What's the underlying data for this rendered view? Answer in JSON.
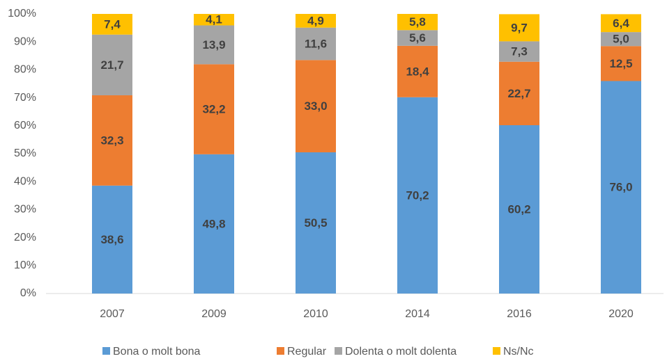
{
  "chart_data": {
    "type": "stacked_bar",
    "categories": [
      "2007",
      "2009",
      "2010",
      "2014",
      "2016",
      "2020"
    ],
    "series": [
      {
        "name": "Bona o molt bona",
        "color": "#5b9bd5",
        "values": [
          38.6,
          49.8,
          50.5,
          70.2,
          60.2,
          76.0
        ],
        "value_labels": [
          "38,6",
          "49,8",
          "50,5",
          "70,2",
          "60,2",
          "76,0"
        ]
      },
      {
        "name": "Regular",
        "color": "#ed7d31",
        "values": [
          32.3,
          32.2,
          33.0,
          18.4,
          22.7,
          12.5
        ],
        "value_labels": [
          "32,3",
          "32,2",
          "33,0",
          "18,4",
          "22,7",
          "12,5"
        ]
      },
      {
        "name": "Dolenta o molt dolenta",
        "color": "#a5a5a5",
        "values": [
          21.7,
          13.9,
          11.6,
          5.6,
          7.3,
          5.0
        ],
        "value_labels": [
          "21,7",
          "13,9",
          "11,6",
          "5,6",
          "7,3",
          "5,0"
        ]
      },
      {
        "name": "Ns/Nc",
        "color": "#ffc000",
        "values": [
          7.4,
          4.1,
          4.9,
          5.8,
          9.7,
          6.4
        ],
        "value_labels": [
          "7,4",
          "4,1",
          "4,9",
          "5,8",
          "9,7",
          "6,4"
        ]
      }
    ],
    "ylim": [
      0,
      100
    ],
    "yticks": [
      {
        "value": 0,
        "label": "0%"
      },
      {
        "value": 10,
        "label": "10%"
      },
      {
        "value": 20,
        "label": "20%"
      },
      {
        "value": 30,
        "label": "30%"
      },
      {
        "value": 40,
        "label": "40%"
      },
      {
        "value": 50,
        "label": "50%"
      },
      {
        "value": 60,
        "label": "60%"
      },
      {
        "value": 70,
        "label": "70%"
      },
      {
        "value": 80,
        "label": "80%"
      },
      {
        "value": 90,
        "label": "90%"
      },
      {
        "value": 100,
        "label": "100%"
      }
    ],
    "grid": false,
    "legend": "bottom"
  }
}
